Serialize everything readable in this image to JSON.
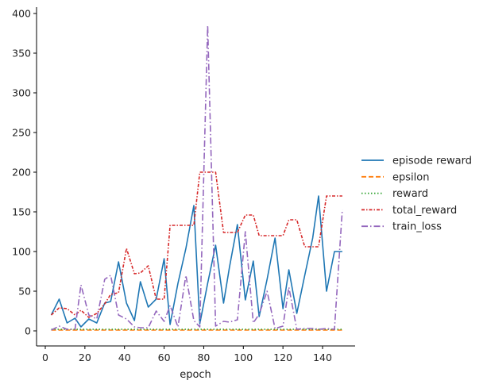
{
  "chart_data": {
    "type": "line",
    "title": "",
    "xlabel": "epoch",
    "ylabel": "",
    "xlim": [
      -5,
      156
    ],
    "ylim": [
      -19,
      406
    ],
    "grid": false,
    "legend_position": "right-outside",
    "x_ticks": [
      0,
      20,
      40,
      60,
      80,
      100,
      120,
      140
    ],
    "y_ticks": [
      0,
      50,
      100,
      150,
      200,
      250,
      300,
      350,
      400
    ],
    "x": [
      3,
      7,
      11,
      15,
      18,
      22,
      26,
      30,
      33,
      37,
      41,
      45,
      48,
      52,
      56,
      60,
      63,
      67,
      71,
      75,
      78,
      82,
      86,
      90,
      93,
      97,
      101,
      105,
      108,
      112,
      116,
      120,
      123,
      127,
      131,
      135,
      138,
      142,
      146,
      150
    ],
    "series": [
      {
        "name": "episode reward",
        "color": "#1f77b4",
        "dash": "",
        "values": [
          20,
          40,
          10,
          16,
          5,
          15,
          10,
          35,
          37,
          87,
          35,
          13,
          62,
          30,
          40,
          91,
          8,
          60,
          104,
          158,
          9,
          60,
          108,
          35,
          80,
          134,
          39,
          88,
          18,
          65,
          117,
          28,
          77,
          22,
          70,
          117,
          170,
          50,
          100,
          100
        ]
      },
      {
        "name": "epsilon",
        "color": "#ff7f0e",
        "dash": "6,3",
        "values": [
          1,
          1,
          1,
          1,
          1,
          1,
          1,
          1,
          1,
          1,
          1,
          1,
          1,
          1,
          1,
          1,
          1,
          1,
          1,
          1,
          1,
          1,
          1,
          1,
          1,
          1,
          1,
          1,
          1,
          1,
          1,
          1,
          1,
          1,
          1,
          1,
          1,
          1,
          1,
          1
        ]
      },
      {
        "name": "reward",
        "color": "#2ca02c",
        "dash": "1.5,2.5",
        "values": [
          2,
          2,
          2,
          2,
          2,
          2,
          2,
          2,
          2,
          2,
          2,
          2,
          2,
          2,
          2,
          2,
          2,
          2,
          2,
          2,
          2,
          2,
          2,
          2,
          2,
          2,
          2,
          2,
          2,
          2,
          2,
          2,
          2,
          2,
          2,
          2,
          2,
          2,
          2,
          2
        ]
      },
      {
        "name": "total_reward",
        "color": "#d62728",
        "dash": "4,2,1.5,2",
        "values": [
          20,
          29,
          28,
          20,
          26,
          17,
          22,
          34,
          46,
          48,
          104,
          72,
          73,
          82,
          40,
          40,
          133,
          133,
          133,
          133,
          200,
          200,
          200,
          124,
          124,
          124,
          146,
          146,
          120,
          120,
          120,
          120,
          140,
          140,
          106,
          106,
          106,
          170,
          170,
          170
        ]
      },
      {
        "name": "train_loss",
        "color": "#9467bd",
        "dash": "8,3,1.5,3",
        "values": [
          1,
          6,
          2,
          2,
          58,
          20,
          15,
          65,
          70,
          20,
          15,
          5,
          4,
          4,
          25,
          12,
          32,
          5,
          70,
          13,
          5,
          385,
          6,
          12,
          11,
          14,
          125,
          10,
          21,
          50,
          3,
          6,
          55,
          2,
          3,
          3,
          2,
          3,
          2,
          153
        ]
      }
    ]
  },
  "legend": {
    "items": [
      {
        "label": "episode reward"
      },
      {
        "label": "epsilon"
      },
      {
        "label": "reward"
      },
      {
        "label": "total_reward"
      },
      {
        "label": "train_loss"
      }
    ]
  }
}
